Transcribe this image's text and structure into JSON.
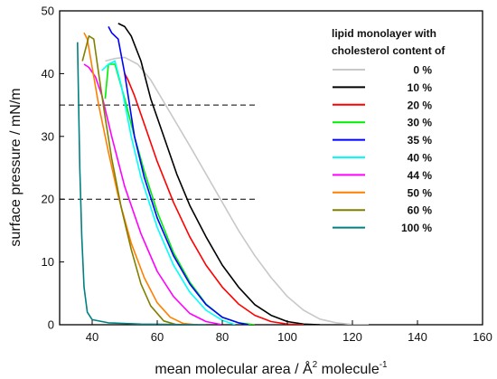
{
  "chart_data": {
    "type": "line",
    "title": "",
    "xlabel": "mean molecular area / Å",
    "xlabel_sup": "2",
    "xlabel_tail": " molecule",
    "xlabel_tail_sup": "-1",
    "ylabel": "surface pressure / mN/m",
    "xlim": [
      30,
      160
    ],
    "ylim": [
      0,
      50
    ],
    "xticks": [
      40,
      60,
      80,
      100,
      120,
      140,
      160
    ],
    "yticks": [
      0,
      10,
      20,
      30,
      40,
      50
    ],
    "grid": false,
    "legend": {
      "title_line1": "lipid monolayer with",
      "title_line2": "cholesterol content of",
      "placement": "top-right"
    },
    "reference_lines": [
      {
        "y": 35,
        "x_range": [
          30,
          91
        ],
        "style": "dashed"
      },
      {
        "y": 20,
        "x_range": [
          30,
          91
        ],
        "style": "dashed"
      }
    ],
    "series": [
      {
        "name": "0 %",
        "color": "#c8c8c8",
        "x": [
          44,
          47,
          50,
          54,
          58,
          62,
          66,
          70,
          75,
          80,
          85,
          90,
          95,
          100,
          105,
          110,
          115,
          120,
          125
        ],
        "y": [
          42,
          42.4,
          42.6,
          41.5,
          39,
          35.5,
          32,
          28.5,
          24,
          19.5,
          15,
          11,
          7.5,
          4.5,
          2.3,
          0.9,
          0.3,
          0.05,
          0
        ]
      },
      {
        "name": "10 %",
        "color": "#000000",
        "x": [
          48,
          50,
          52,
          55,
          58,
          62,
          66,
          70,
          75,
          80,
          85,
          90,
          95,
          100,
          105,
          110
        ],
        "y": [
          48,
          47.5,
          46,
          42,
          36,
          30,
          24,
          19,
          14,
          9.5,
          6,
          3.2,
          1.5,
          0.5,
          0.1,
          0
        ]
      },
      {
        "name": "20 %",
        "color": "#ff0000",
        "x": [
          50,
          51,
          53,
          56,
          60,
          65,
          70,
          75,
          80,
          85,
          90,
          95,
          100,
          105
        ],
        "y": [
          40,
          39,
          36.5,
          32,
          26,
          19.5,
          14,
          9.5,
          6,
          3.3,
          1.5,
          0.5,
          0.1,
          0
        ]
      },
      {
        "name": "30 %",
        "color": "#00ee00",
        "x": [
          44,
          45,
          47,
          50,
          53,
          56,
          60,
          65,
          70,
          75,
          80,
          85,
          90
        ],
        "y": [
          36,
          41.5,
          41.5,
          36,
          30,
          24.5,
          18,
          11.5,
          6.8,
          3.3,
          1.2,
          0.3,
          0
        ]
      },
      {
        "name": "35 %",
        "color": "#0000ff",
        "x": [
          45,
          46,
          48,
          50,
          53,
          56,
          60,
          65,
          70,
          75,
          80,
          85,
          88
        ],
        "y": [
          47.5,
          46.5,
          45.5,
          40,
          30,
          23.5,
          17,
          11,
          6.5,
          3.2,
          1.2,
          0.3,
          0
        ]
      },
      {
        "name": "40 %",
        "color": "#00ffff",
        "x": [
          43,
          45,
          47,
          49,
          52,
          55,
          60,
          65,
          70,
          75,
          80,
          84
        ],
        "y": [
          40.5,
          41.5,
          42,
          38,
          30,
          23.5,
          15.5,
          9.5,
          5.2,
          2.3,
          0.7,
          0
        ]
      },
      {
        "name": "44 %",
        "color": "#ff00ff",
        "x": [
          37.5,
          39,
          41,
          43,
          46,
          50,
          55,
          60,
          65,
          70,
          75,
          80
        ],
        "y": [
          41.5,
          41,
          39.5,
          36.5,
          30,
          22,
          14.5,
          8.5,
          4.5,
          1.8,
          0.5,
          0
        ]
      },
      {
        "name": "50 %",
        "color": "#ff8000",
        "x": [
          37.5,
          38.5,
          40,
          42,
          45,
          48,
          52,
          56,
          60,
          64,
          68,
          72
        ],
        "y": [
          46.5,
          45.5,
          41,
          35,
          27.5,
          20.5,
          13,
          7.5,
          3.5,
          1.2,
          0.2,
          0
        ]
      },
      {
        "name": "60 %",
        "color": "#808000",
        "x": [
          37,
          39,
          40.5,
          42,
          44,
          46,
          49,
          52,
          55,
          58,
          62,
          66
        ],
        "y": [
          42,
          46,
          45.5,
          40,
          33,
          26.5,
          18.5,
          12,
          6.5,
          3,
          0.6,
          0
        ]
      },
      {
        "name": "100 %",
        "color": "#008080",
        "x": [
          35.5,
          35.8,
          36.2,
          36.8,
          37.5,
          38.5,
          40,
          45,
          55,
          65,
          75
        ],
        "y": [
          45,
          36,
          25,
          14,
          6,
          2,
          0.8,
          0.3,
          0.1,
          0.05,
          0
        ]
      }
    ]
  }
}
